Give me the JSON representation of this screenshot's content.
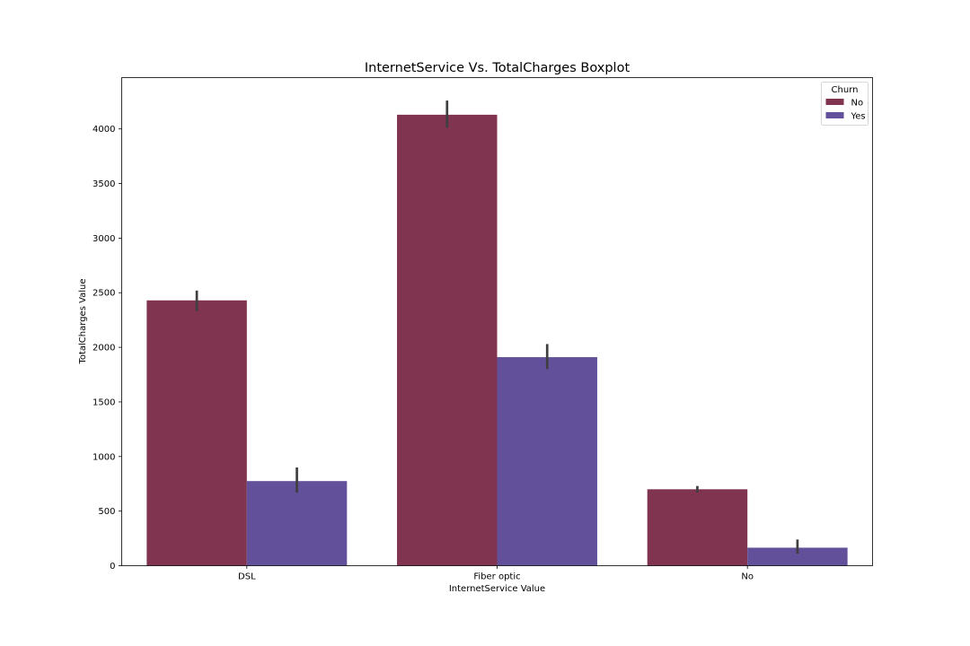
{
  "chart_data": {
    "type": "bar",
    "title": "InternetService Vs. TotalCharges Boxplot",
    "xlabel": "InternetService Value",
    "ylabel": "TotalCharges Value",
    "categories": [
      "DSL",
      "Fiber optic",
      "No"
    ],
    "ylim": [
      0,
      4470
    ],
    "yticks": [
      0,
      500,
      1000,
      1500,
      2000,
      2500,
      3000,
      3500,
      4000
    ],
    "grid": false,
    "legend": {
      "title": "Churn",
      "placement": "top-right"
    },
    "series": [
      {
        "name": "No",
        "color": "#80344f",
        "values": [
          2430,
          4130,
          700
        ],
        "error_low": [
          2330,
          4010,
          670
        ],
        "error_high": [
          2520,
          4260,
          730
        ]
      },
      {
        "name": "Yes",
        "color": "#62519a",
        "values": [
          775,
          1910,
          165
        ],
        "error_low": [
          670,
          1800,
          110
        ],
        "error_high": [
          900,
          2030,
          240
        ]
      }
    ],
    "error_bar_color": "#3f3f3f"
  }
}
